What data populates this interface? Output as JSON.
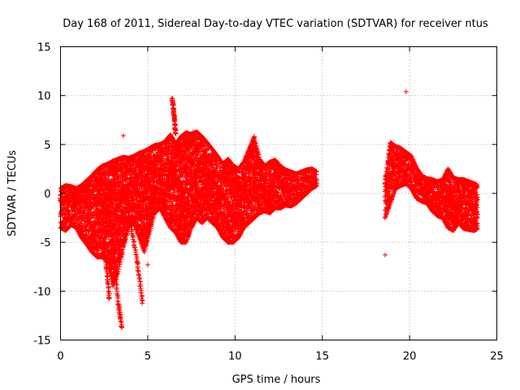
{
  "chart_data": {
    "type": "scatter",
    "title": "Day 168 of 2011, Sidereal Day-to-day VTEC variation (SDTVAR) for receiver ntus",
    "xlabel": "GPS time / hours",
    "ylabel": "SDTVAR / TECUs",
    "xlim": [
      0,
      25
    ],
    "ylim": [
      -15,
      15
    ],
    "x_ticks": [
      0,
      5,
      10,
      15,
      20,
      25
    ],
    "y_ticks": [
      -15,
      -10,
      -5,
      0,
      5,
      10,
      15
    ],
    "grid": true,
    "marker": "+",
    "color": "#ff0000",
    "series": [
      {
        "name": "SDTVAR",
        "description_points": "envelope of dense point cloud (hours, upper TECU, lower TECU)",
        "envelope": [
          [
            0.0,
            0.5,
            -3.5
          ],
          [
            0.3,
            0.8,
            -3.8
          ],
          [
            0.6,
            0.7,
            -3.2
          ],
          [
            0.9,
            0.5,
            -3.5
          ],
          [
            1.2,
            0.8,
            -4.5
          ],
          [
            1.5,
            1.3,
            -5.2
          ],
          [
            1.8,
            1.8,
            -6.0
          ],
          [
            2.1,
            2.4,
            -6.5
          ],
          [
            2.4,
            2.8,
            -6.5
          ],
          [
            2.7,
            3.0,
            -7.0
          ],
          [
            3.0,
            3.3,
            -9.5
          ],
          [
            3.3,
            3.5,
            -8.0
          ],
          [
            3.6,
            3.7,
            -5.5
          ],
          [
            3.9,
            3.6,
            -3.5
          ],
          [
            4.2,
            3.8,
            -3.0
          ],
          [
            4.5,
            4.1,
            -4.5
          ],
          [
            4.8,
            4.3,
            -6.0
          ],
          [
            5.1,
            4.6,
            -4.0
          ],
          [
            5.4,
            4.9,
            -2.0
          ],
          [
            5.7,
            5.0,
            -1.5
          ],
          [
            6.0,
            5.3,
            -2.5
          ],
          [
            6.3,
            6.0,
            -3.5
          ],
          [
            6.6,
            5.0,
            -4.0
          ],
          [
            6.9,
            5.8,
            -5.0
          ],
          [
            7.2,
            6.2,
            -5.0
          ],
          [
            7.5,
            6.0,
            -3.5
          ],
          [
            7.8,
            6.3,
            -2.5
          ],
          [
            8.1,
            5.8,
            -3.0
          ],
          [
            8.4,
            5.2,
            -2.5
          ],
          [
            8.7,
            4.5,
            -3.0
          ],
          [
            9.0,
            3.8,
            -3.5
          ],
          [
            9.3,
            3.0,
            -4.5
          ],
          [
            9.6,
            3.5,
            -5.0
          ],
          [
            9.9,
            2.8,
            -5.0
          ],
          [
            10.2,
            2.5,
            -4.5
          ],
          [
            10.5,
            3.2,
            -3.5
          ],
          [
            10.8,
            4.5,
            -3.0
          ],
          [
            11.1,
            5.8,
            -2.5
          ],
          [
            11.4,
            3.5,
            -2.0
          ],
          [
            11.7,
            2.8,
            -1.8
          ],
          [
            12.0,
            3.2,
            -2.0
          ],
          [
            12.3,
            3.4,
            -1.5
          ],
          [
            12.6,
            2.8,
            -1.5
          ],
          [
            12.9,
            2.4,
            -1.2
          ],
          [
            13.2,
            2.2,
            -1.3
          ],
          [
            13.5,
            2.0,
            -1.0
          ],
          [
            13.8,
            2.2,
            -0.5
          ],
          [
            14.1,
            2.4,
            0.0
          ],
          [
            14.4,
            2.5,
            0.5
          ],
          [
            14.7,
            2.2,
            0.8
          ],
          [
            18.6,
            1.5,
            -2.5
          ],
          [
            18.9,
            5.2,
            -1.0
          ],
          [
            19.2,
            4.8,
            0.5
          ],
          [
            19.5,
            4.6,
            0.8
          ],
          [
            19.8,
            4.2,
            1.0
          ],
          [
            20.1,
            3.8,
            0.5
          ],
          [
            20.4,
            2.6,
            -0.5
          ],
          [
            20.7,
            1.8,
            -0.8
          ],
          [
            21.0,
            1.5,
            -1.0
          ],
          [
            21.3,
            1.4,
            -1.8
          ],
          [
            21.6,
            1.2,
            -2.3
          ],
          [
            21.9,
            1.4,
            -2.5
          ],
          [
            22.2,
            2.5,
            -3.5
          ],
          [
            22.5,
            1.6,
            -3.8
          ],
          [
            22.8,
            1.4,
            -3.0
          ],
          [
            23.1,
            1.4,
            -3.6
          ],
          [
            23.4,
            1.2,
            -3.7
          ],
          [
            23.7,
            1.0,
            -3.8
          ],
          [
            23.9,
            0.8,
            -3.6
          ]
        ],
        "descending_tracks": [
          [
            [
              2.4,
              -2.0
            ],
            [
              2.6,
              -7.0
            ],
            [
              2.8,
              -10.8
            ]
          ],
          [
            [
              2.7,
              -1.5
            ],
            [
              3.0,
              -6.0
            ],
            [
              3.3,
              -11.0
            ],
            [
              3.5,
              -13.7
            ]
          ],
          [
            [
              3.5,
              0.5
            ],
            [
              4.0,
              -3.0
            ],
            [
              4.4,
              -7.0
            ],
            [
              4.7,
              -11.2
            ]
          ],
          [
            [
              5.5,
              0.5
            ],
            [
              5.1,
              -3.0
            ],
            [
              4.9,
              -5.0
            ]
          ],
          [
            [
              6.4,
              9.8
            ],
            [
              6.5,
              8.0
            ],
            [
              6.6,
              6.0
            ]
          ]
        ],
        "outliers": [
          [
            3.6,
            5.9
          ],
          [
            5.0,
            -7.3
          ],
          [
            18.6,
            -6.3
          ],
          [
            19.8,
            10.4
          ],
          [
            7.6,
            6.3
          ]
        ]
      }
    ]
  }
}
